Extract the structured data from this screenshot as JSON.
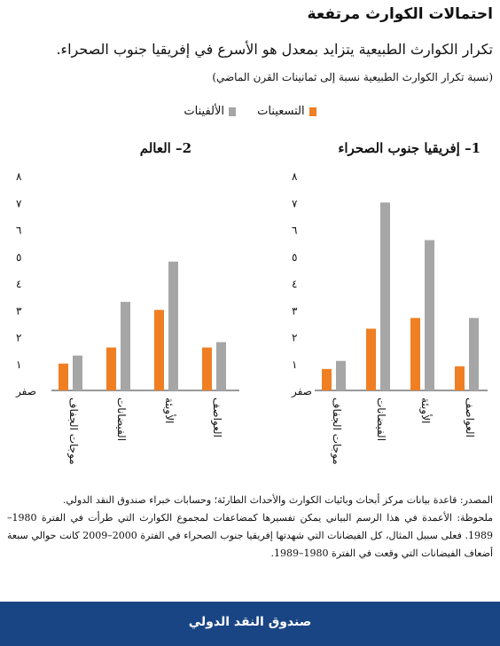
{
  "header": {
    "title": "احتمالات الكوارث مرتفعة",
    "subtitle": "تكرار الكوارث الطبيعية يتزايد بمعدل هو الأسرع في إفريقيا جنوب الصحراء.",
    "note": "(نسبة تكرار الكوارث الطبيعية نسبة إلى ثمانينات القرن الماضي)"
  },
  "legend": {
    "series1": "التسعينات",
    "series2": "الألفينات"
  },
  "colors": {
    "series1": "#f07f23",
    "series2": "#a6a6a6",
    "footer": "#1a4585"
  },
  "chart_data": [
    {
      "type": "bar",
      "title": "1– إفريقيا جنوب الصحراء",
      "categories": [
        "موجات الجفاف",
        "الفيضانات",
        "الأوبئة",
        "العواصف"
      ],
      "ylim": [
        0,
        8
      ],
      "yticks": [
        "صفر",
        "١",
        "٢",
        "٣",
        "٤",
        "٥",
        "٦",
        "٧",
        "٨"
      ],
      "series": [
        {
          "name": "التسعينات",
          "values": [
            0.8,
            2.3,
            2.7,
            0.9
          ]
        },
        {
          "name": "الألفينات",
          "values": [
            1.1,
            7.0,
            5.6,
            2.7
          ]
        }
      ]
    },
    {
      "type": "bar",
      "title": "2– العالم",
      "categories": [
        "موجات الجفاف",
        "الفيضانات",
        "الأوبئة",
        "العواصف"
      ],
      "ylim": [
        0,
        8
      ],
      "yticks": [
        "صفر",
        "١",
        "٢",
        "٣",
        "٤",
        "٥",
        "٦",
        "٧",
        "٨"
      ],
      "series": [
        {
          "name": "التسعينات",
          "values": [
            1.0,
            1.6,
            3.0,
            1.6
          ]
        },
        {
          "name": "الألفينات",
          "values": [
            1.3,
            3.3,
            4.8,
            1.8
          ]
        }
      ]
    }
  ],
  "source": {
    "line1": "المصدر: قاعدة بيانات مركز أبحاث وبائيات الكوارث والأحداث الطارئة؛ وحسابات خبراء صندوق النقد الدولي.",
    "line2": "ملحوظة: الأعمدة في هذا الرسم البياني يمكن تفسيرها كمضاعفات لمجموع الكوارث التي طرأت في الفترة 1980–1989. فعلى سبيل المثال، كل الفيضانات التي شهدتها إفريقيا جنوب الصحراء في الفترة 2000–2009 كانت حوالي سبعة أضعاف الفيضانات التي وقعت في الفترة 1980–1989."
  },
  "footer": {
    "label": "صندوق النقد الدولي"
  }
}
